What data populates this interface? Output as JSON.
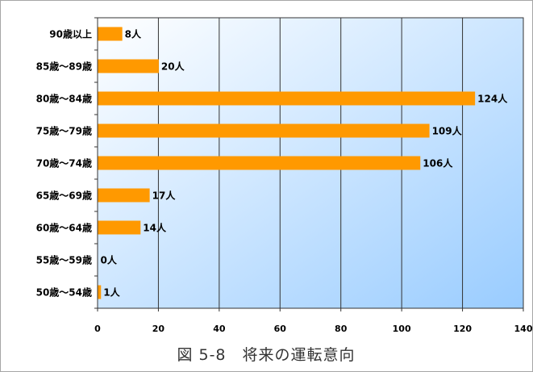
{
  "chart_data": {
    "type": "bar",
    "orientation": "horizontal",
    "title": "図 5-8　将来の運転意向",
    "xlabel": "",
    "ylabel": "",
    "categories": [
      "90歳以上",
      "85歳～89歳",
      "80歳～84歳",
      "75歳～79歳",
      "70歳～74歳",
      "65歳～69歳",
      "60歳～64歳",
      "55歳～59歳",
      "50歳～54歳"
    ],
    "values": [
      8,
      20,
      124,
      109,
      106,
      17,
      14,
      0,
      1
    ],
    "value_suffix": "人",
    "xlim": [
      0,
      140
    ],
    "xticks": [
      0,
      20,
      40,
      60,
      80,
      100,
      120,
      140
    ],
    "grid": "vertical",
    "legend": "none",
    "colors": {
      "bar": "#FF9900",
      "plot_gradient_start": "#FFFFFF",
      "plot_gradient_end": "#99CCFF",
      "gridline": "#333333",
      "plot_border": "#333333",
      "frame": "#A6A6A6"
    }
  }
}
